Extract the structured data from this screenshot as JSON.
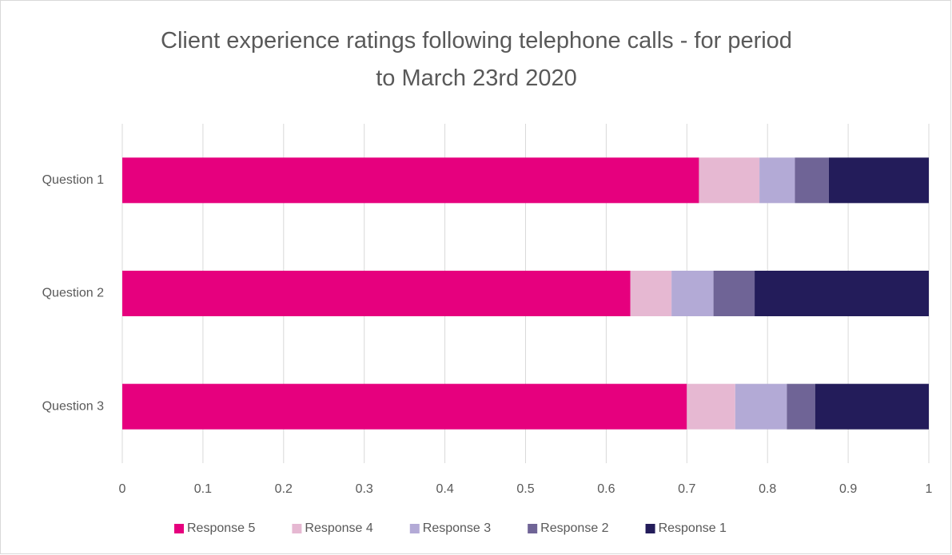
{
  "chart_data": {
    "type": "stacked_barh",
    "title": "Client experience ratings following telephone calls - for period to March 23rd 2020",
    "categories": [
      "Question 1",
      "Question 2",
      "Question 3"
    ],
    "series": [
      {
        "name": "Response 5",
        "color": "#e6007e",
        "values": [
          0.715,
          0.63,
          0.7
        ]
      },
      {
        "name": "Response 4",
        "color": "#e6b8d2",
        "values": [
          0.075,
          0.051,
          0.06
        ]
      },
      {
        "name": "Response 3",
        "color": "#b3aad6",
        "values": [
          0.044,
          0.052,
          0.064
        ]
      },
      {
        "name": "Response 2",
        "color": "#6f6496",
        "values": [
          0.042,
          0.051,
          0.035
        ]
      },
      {
        "name": "Response 1",
        "color": "#231c5a",
        "values": [
          0.124,
          0.216,
          0.141
        ]
      }
    ],
    "xlim": [
      0,
      1
    ],
    "xticks": [
      0,
      0.1,
      0.2,
      0.3,
      0.4,
      0.5,
      0.6,
      0.7,
      0.8,
      0.9,
      1
    ],
    "grid": true,
    "legend": "bottom"
  }
}
